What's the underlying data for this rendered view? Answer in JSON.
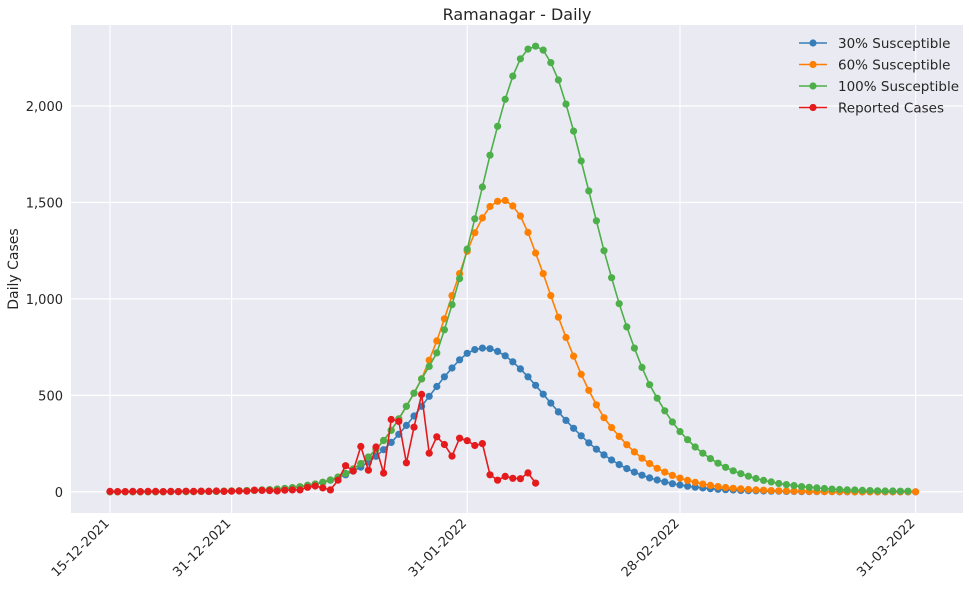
{
  "chart_data": {
    "type": "line",
    "title": "Ramanagar - Daily",
    "xlabel": "",
    "ylabel": "Daily Cases",
    "x_start_date": "15-12-2021",
    "x_end_date": "31-03-2022",
    "xticks": [
      "15-12-2021",
      "31-12-2021",
      "31-01-2022",
      "28-02-2022",
      "31-03-2022"
    ],
    "yticks": [
      "0",
      "500",
      "1,000",
      "1,500",
      "2,000"
    ],
    "ylim": [
      -110,
      2420
    ],
    "grid": true,
    "legend_position": "top-right",
    "series": [
      {
        "name": "30% Susceptible",
        "color": "#377eb8",
        "start": "15-12-2021",
        "values": [
          0,
          0,
          0,
          0,
          0,
          0,
          0,
          0,
          1,
          1,
          1,
          1,
          2,
          2,
          2,
          3,
          4,
          5,
          6,
          7,
          9,
          11,
          14,
          17,
          21,
          26,
          33,
          40,
          49,
          60,
          73,
          88,
          107,
          128,
          154,
          184,
          218,
          256,
          298,
          344,
          393,
          443,
          495,
          546,
          596,
          642,
          684,
          718,
          737,
          745,
          742,
          728,
          705,
          674,
          637,
          596,
          552,
          506,
          460,
          414,
          370,
          329,
          290,
          254,
          221,
          191,
          165,
          141,
          120,
          102,
          86,
          72,
          61,
          51,
          42,
          35,
          29,
          24,
          20,
          16,
          13,
          11,
          9,
          7,
          6,
          5,
          4,
          3,
          3,
          2,
          2,
          1,
          1,
          1,
          1,
          1,
          0,
          0,
          0,
          0,
          0,
          0,
          0,
          0,
          0,
          0,
          0
        ]
      },
      {
        "name": "60% Susceptible",
        "color": "#ff7f00",
        "start": "15-12-2021",
        "values": [
          0,
          0,
          0,
          0,
          0,
          0,
          0,
          0,
          1,
          1,
          1,
          1,
          2,
          2,
          2,
          3,
          4,
          5,
          6,
          7,
          9,
          11,
          14,
          17,
          21,
          26,
          33,
          40,
          49,
          61,
          76,
          95,
          118,
          146,
          180,
          220,
          266,
          319,
          378,
          443,
          511,
          585,
          682,
          782,
          897,
          1017,
          1131,
          1247,
          1343,
          1420,
          1479,
          1506,
          1510,
          1482,
          1430,
          1345,
          1238,
          1131,
          1017,
          905,
          800,
          703,
          609,
          526,
          451,
          384,
          333,
          287,
          244,
          207,
          174,
          146,
          122,
          102,
          85,
          71,
          59,
          49,
          40,
          33,
          27,
          22,
          18,
          15,
          12,
          10,
          8,
          6,
          5,
          4,
          3,
          3,
          2,
          2,
          1,
          1,
          1,
          1,
          0,
          0,
          0,
          0,
          0,
          0,
          0,
          0,
          0
        ]
      },
      {
        "name": "100% Susceptible",
        "color": "#4daf4a",
        "start": "15-12-2021",
        "values": [
          0,
          0,
          0,
          0,
          0,
          0,
          0,
          0,
          1,
          1,
          1,
          1,
          2,
          2,
          2,
          3,
          4,
          5,
          6,
          7,
          9,
          11,
          14,
          17,
          21,
          26,
          33,
          40,
          49,
          61,
          76,
          95,
          118,
          146,
          180,
          220,
          266,
          319,
          378,
          443,
          511,
          585,
          650,
          720,
          840,
          970,
          1105,
          1258,
          1415,
          1580,
          1745,
          1895,
          2035,
          2155,
          2245,
          2295,
          2310,
          2290,
          2225,
          2135,
          2010,
          1870,
          1715,
          1560,
          1405,
          1250,
          1110,
          975,
          855,
          745,
          645,
          555,
          485,
          420,
          362,
          312,
          270,
          232,
          200,
          172,
          148,
          127,
          109,
          94,
          81,
          69,
          59,
          51,
          43,
          37,
          32,
          27,
          23,
          20,
          17,
          14,
          12,
          10,
          9,
          7,
          6,
          5,
          4,
          4,
          3,
          3
        ]
      },
      {
        "name": "Reported Cases",
        "color": "#e41a1c",
        "start": "15-12-2021",
        "values": [
          2,
          1,
          1,
          2,
          1,
          2,
          2,
          1,
          2,
          1,
          3,
          2,
          3,
          2,
          4,
          2,
          3,
          4,
          3,
          8,
          7,
          6,
          4,
          8,
          10,
          10,
          23,
          30,
          20,
          10,
          60,
          135,
          108,
          235,
          112,
          232,
          97,
          375,
          365,
          150,
          335,
          505,
          200,
          285,
          245,
          185,
          278,
          265,
          240,
          250,
          88,
          60,
          80,
          70,
          68,
          98,
          45
        ]
      }
    ]
  }
}
